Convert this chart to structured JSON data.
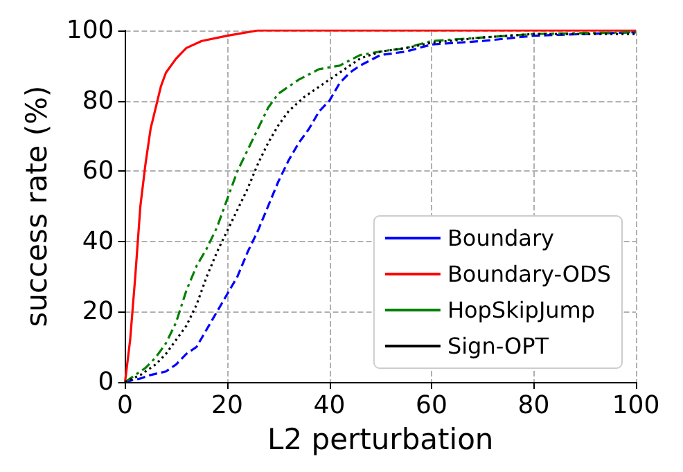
{
  "chart_data": {
    "type": "line",
    "xlabel": "L2 perturbation",
    "ylabel": "success rate (%)",
    "xlim": [
      0,
      100
    ],
    "ylim": [
      0,
      100
    ],
    "xticks": [
      0,
      20,
      40,
      60,
      80,
      100
    ],
    "yticks": [
      0,
      20,
      40,
      60,
      80,
      100
    ],
    "grid": true,
    "legend": "bottom right",
    "marker": "none",
    "series": [
      {
        "name": "Boundary",
        "color": "#0000ff",
        "line_style": "dashed",
        "x": [
          0,
          3,
          5,
          8,
          10,
          12,
          14,
          16,
          18,
          20,
          22,
          24,
          26,
          28,
          30,
          32,
          34,
          36,
          38,
          40,
          42,
          44,
          46,
          50,
          55,
          60,
          70,
          80,
          90,
          100
        ],
        "values": [
          0,
          1,
          2,
          3,
          5,
          8,
          10,
          15,
          20,
          25,
          30,
          37,
          43,
          50,
          57,
          63,
          68,
          72,
          77,
          80,
          85,
          88,
          90,
          93,
          94,
          96,
          97,
          98.5,
          99,
          99.5
        ]
      },
      {
        "name": "Boundary-ODS",
        "color": "#ff0000",
        "line_style": "solid",
        "x": [
          0,
          1,
          2,
          3,
          4,
          5,
          6,
          7,
          8,
          10,
          12,
          15,
          20,
          26,
          100
        ],
        "values": [
          0,
          12,
          30,
          50,
          62,
          72,
          78,
          84,
          88,
          92,
          95,
          97,
          98.5,
          100,
          100
        ]
      },
      {
        "name": "HopSkipJump",
        "color": "#008000",
        "line_style": "dashdot",
        "x": [
          0,
          2,
          4,
          6,
          8,
          10,
          12,
          14,
          16,
          18,
          20,
          22,
          24,
          26,
          28,
          30,
          34,
          38,
          42,
          46,
          50,
          55,
          60,
          70,
          80,
          100
        ],
        "values": [
          0,
          2,
          4,
          7,
          11,
          17,
          26,
          33,
          38,
          44,
          52,
          60,
          66,
          72,
          78,
          82,
          86,
          89,
          90,
          93,
          94,
          95,
          97,
          98,
          99,
          99.5
        ]
      },
      {
        "name": "Sign-OPT",
        "color": "#000000",
        "line_style": "dotted",
        "x": [
          0,
          3,
          6,
          8,
          10,
          12,
          14,
          16,
          18,
          20,
          22,
          24,
          26,
          28,
          30,
          32,
          35,
          38,
          40,
          42,
          46,
          50,
          55,
          60,
          70,
          80,
          100
        ],
        "values": [
          0,
          2,
          5,
          8,
          12,
          16,
          22,
          30,
          37,
          43,
          49,
          55,
          62,
          68,
          73,
          77,
          81,
          84,
          86,
          88,
          92,
          94,
          95,
          96.5,
          98,
          99,
          99
        ]
      }
    ]
  }
}
